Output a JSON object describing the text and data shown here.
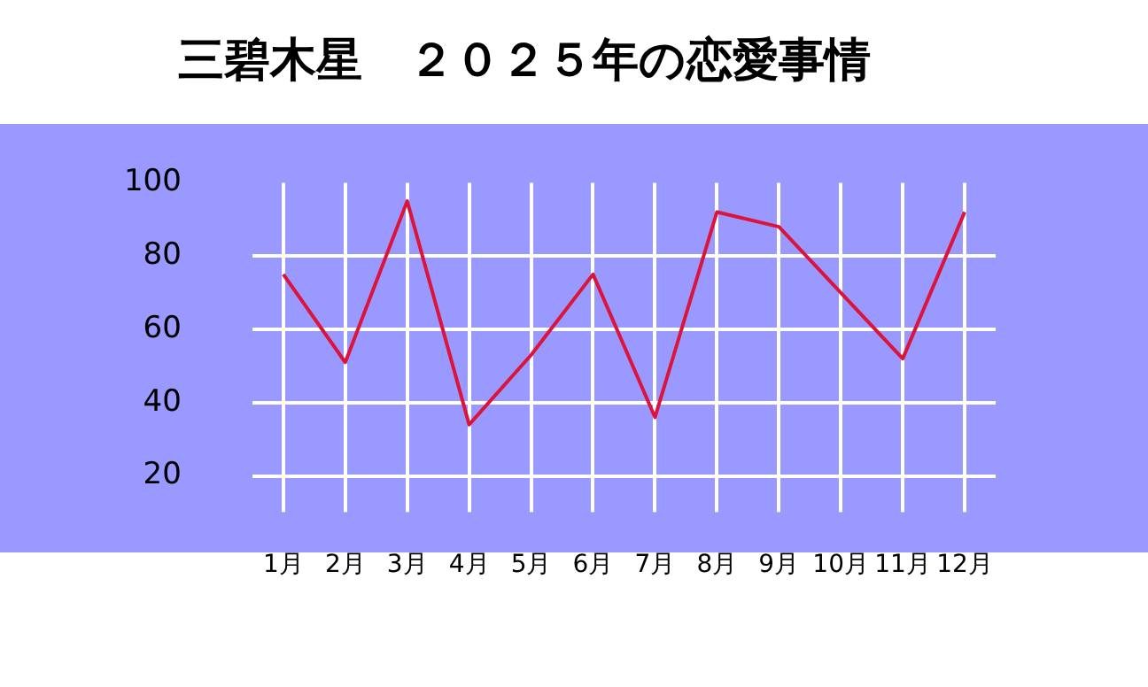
{
  "chart_data": {
    "type": "line",
    "title": "三碧木星　２０２５年の恋愛事情",
    "categories": [
      "1月",
      "2月",
      "3月",
      "4月",
      "5月",
      "6月",
      "7月",
      "8月",
      "9月",
      "10月",
      "11月",
      "12月"
    ],
    "series": [
      {
        "color": "#dc143c",
        "values": [
          75,
          51,
          95,
          34,
          53,
          75,
          36,
          92,
          88,
          70,
          52,
          92
        ]
      }
    ],
    "ylim": [
      14,
      100
    ],
    "yticks": [
      20,
      40,
      60,
      80,
      100
    ],
    "grid": true,
    "legend": false,
    "marker": "none",
    "line_style": "solid"
  }
}
